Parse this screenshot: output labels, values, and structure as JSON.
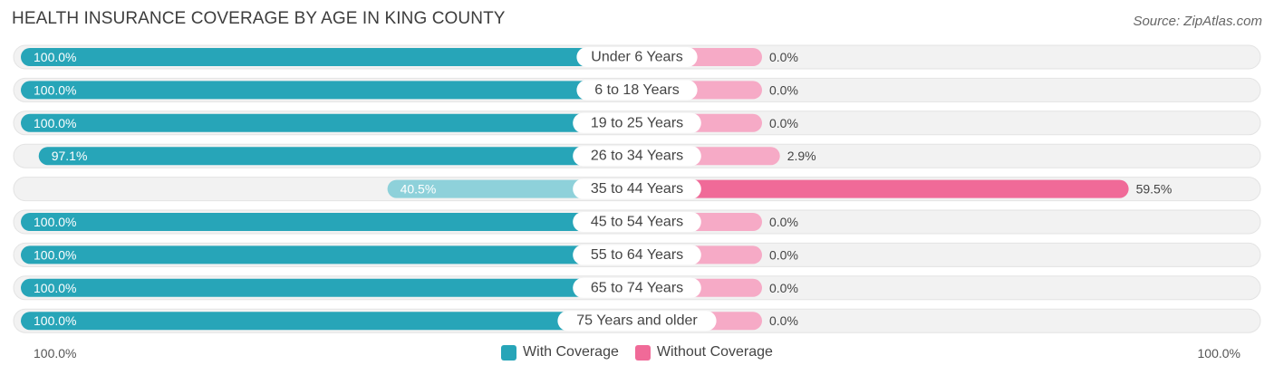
{
  "title": "HEALTH INSURANCE COVERAGE BY AGE IN KING COUNTY",
  "source": "Source: ZipAtlas.com",
  "colors": {
    "with_strong": "#27a5b8",
    "with_light": "#8ed1da",
    "without_strong": "#f06a98",
    "without_light": "#f6aac6",
    "row_bg": "#f2f2f2"
  },
  "chart_data": {
    "type": "bar",
    "title": "HEALTH INSURANCE COVERAGE BY AGE IN KING COUNTY",
    "categories": [
      "Under 6 Years",
      "6 to 18 Years",
      "19 to 25 Years",
      "26 to 34 Years",
      "35 to 44 Years",
      "45 to 54 Years",
      "55 to 64 Years",
      "65 to 74 Years",
      "75 Years and older"
    ],
    "series": [
      {
        "name": "With Coverage",
        "values": [
          100.0,
          100.0,
          100.0,
          97.1,
          40.5,
          100.0,
          100.0,
          100.0,
          100.0
        ],
        "labels": [
          "100.0%",
          "100.0%",
          "100.0%",
          "97.1%",
          "40.5%",
          "100.0%",
          "100.0%",
          "100.0%",
          "100.0%"
        ]
      },
      {
        "name": "Without Coverage",
        "values": [
          0.0,
          0.0,
          0.0,
          2.9,
          59.5,
          0.0,
          0.0,
          0.0,
          0.0
        ],
        "labels": [
          "0.0%",
          "0.0%",
          "0.0%",
          "2.9%",
          "59.5%",
          "0.0%",
          "0.0%",
          "0.0%",
          "0.0%"
        ]
      }
    ],
    "xlim": [
      -100,
      100
    ],
    "axis_left_label": "100.0%",
    "axis_right_label": "100.0%",
    "legend_position": "bottom-center"
  }
}
